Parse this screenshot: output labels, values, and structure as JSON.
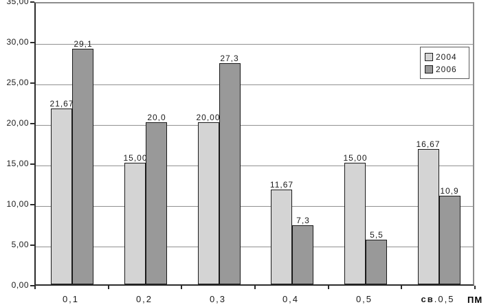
{
  "chart_data": {
    "type": "bar",
    "title": "",
    "xlabel": "ПМ",
    "ylabel": "",
    "ylim": [
      0,
      35
    ],
    "ytick_step": 5,
    "ytick_labels": [
      "0,00",
      "5,00",
      "10,00",
      "15,00",
      "20,00",
      "25,00",
      "30,00",
      "35,00"
    ],
    "grid": true,
    "legend_position": "top-right",
    "categories": [
      "0,1",
      "0,2",
      "0,3",
      "0,4",
      "0,5",
      "св.0,5"
    ],
    "category_bold_prefix": {
      "index": 5,
      "prefix": "св",
      "rest": ".0,5"
    },
    "series": [
      {
        "name": "2004",
        "color": "#d4d4d4",
        "values": [
          21.67,
          15.0,
          20.0,
          11.67,
          15.0,
          16.67
        ],
        "labels": [
          "21,67",
          "15,00",
          "20,00",
          "11,67",
          "15,00",
          "16,67"
        ]
      },
      {
        "name": "2006",
        "color": "#999999",
        "values": [
          29.1,
          20.0,
          27.3,
          7.3,
          5.5,
          10.9
        ],
        "labels": [
          "29,1",
          "20,0",
          "27,3",
          "7,3",
          "5,5",
          "10,9"
        ]
      }
    ]
  },
  "colors": {
    "background": "#ffffff",
    "grid": "#909090",
    "axis": "#2b2b2b",
    "bar_border": "#1a1a1a",
    "text": "#1a1a1a"
  }
}
